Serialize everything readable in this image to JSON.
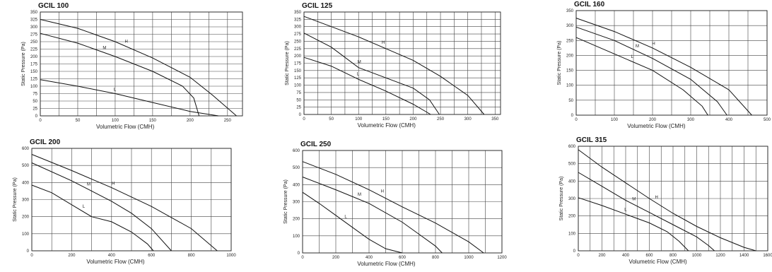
{
  "chart_data": [
    {
      "type": "line",
      "title": "GCIL 100",
      "xlabel": "Volumetric Flow (CMH)",
      "ylabel": "Static Pressure (Pa)",
      "xlim": [
        0,
        270
      ],
      "ylim": [
        0,
        350
      ],
      "xticks": [
        0,
        50,
        100,
        150,
        200,
        250
      ],
      "yticks": [
        0,
        25,
        50,
        75,
        100,
        125,
        150,
        175,
        200,
        225,
        250,
        275,
        300,
        325,
        350
      ],
      "grid": true,
      "series": [
        {
          "name": "H",
          "points": [
            [
              0,
              325
            ],
            [
              50,
              295
            ],
            [
              100,
              250
            ],
            [
              150,
              195
            ],
            [
              200,
              130
            ],
            [
              230,
              70
            ],
            [
              262,
              0
            ]
          ]
        },
        {
          "name": "M",
          "points": [
            [
              0,
              278
            ],
            [
              50,
              245
            ],
            [
              100,
              200
            ],
            [
              150,
              150
            ],
            [
              190,
              100
            ],
            [
              205,
              60
            ],
            [
              212,
              0
            ]
          ]
        },
        {
          "name": "L",
          "points": [
            [
              0,
              122
            ],
            [
              50,
              100
            ],
            [
              100,
              75
            ],
            [
              150,
              45
            ],
            [
              200,
              15
            ],
            [
              238,
              0
            ]
          ]
        }
      ]
    },
    {
      "type": "line",
      "title": "GCIL 125",
      "xlabel": "Volumetric Flow (CMH)",
      "ylabel": "Static Pressure (Pa)",
      "xlim": [
        0,
        360
      ],
      "ylim": [
        0,
        350
      ],
      "xticks": [
        0,
        50,
        100,
        150,
        200,
        250,
        300,
        350
      ],
      "yticks": [
        0,
        25,
        50,
        75,
        100,
        125,
        150,
        175,
        200,
        225,
        250,
        275,
        300,
        325,
        350
      ],
      "grid": true,
      "series": [
        {
          "name": "H",
          "points": [
            [
              0,
              335
            ],
            [
              50,
              300
            ],
            [
              100,
              265
            ],
            [
              150,
              225
            ],
            [
              200,
              185
            ],
            [
              250,
              130
            ],
            [
              300,
              65
            ],
            [
              330,
              0
            ]
          ]
        },
        {
          "name": "M",
          "points": [
            [
              0,
              278
            ],
            [
              50,
              230
            ],
            [
              100,
              160
            ],
            [
              150,
              125
            ],
            [
              200,
              90
            ],
            [
              230,
              50
            ],
            [
              248,
              0
            ]
          ]
        },
        {
          "name": "L",
          "points": [
            [
              0,
              195
            ],
            [
              50,
              165
            ],
            [
              100,
              120
            ],
            [
              150,
              80
            ],
            [
              200,
              35
            ],
            [
              232,
              0
            ]
          ]
        }
      ]
    },
    {
      "type": "line",
      "title": "GCIL 160",
      "xlabel": "Volumetric Flow (CMH)",
      "ylabel": "Static Pressure (Pa)",
      "xlim": [
        0,
        500
      ],
      "ylim": [
        0,
        350
      ],
      "xticks": [
        0,
        100,
        200,
        300,
        400,
        500
      ],
      "yticks": [
        0,
        50,
        100,
        150,
        200,
        250,
        300,
        350
      ],
      "grid": true,
      "series": [
        {
          "name": "H",
          "points": [
            [
              0,
              325
            ],
            [
              100,
              280
            ],
            [
              200,
              225
            ],
            [
              300,
              160
            ],
            [
              400,
              85
            ],
            [
              460,
              0
            ]
          ]
        },
        {
          "name": "M",
          "points": [
            [
              0,
              295
            ],
            [
              100,
              250
            ],
            [
              200,
              190
            ],
            [
              300,
              120
            ],
            [
              370,
              45
            ],
            [
              395,
              0
            ]
          ]
        },
        {
          "name": "L",
          "points": [
            [
              0,
              260
            ],
            [
              100,
              205
            ],
            [
              200,
              150
            ],
            [
              280,
              85
            ],
            [
              330,
              30
            ],
            [
              345,
              0
            ]
          ]
        }
      ]
    },
    {
      "type": "line",
      "title": "GCIL 200",
      "xlabel": "Volumetric Flow (CMH)",
      "ylabel": "Static Pressure (Pa)",
      "xlim": [
        0,
        1000
      ],
      "ylim": [
        0,
        600
      ],
      "xticks": [
        0,
        200,
        400,
        600,
        800,
        1000
      ],
      "yticks": [
        0,
        100,
        200,
        300,
        400,
        500,
        600
      ],
      "grid": true,
      "series": [
        {
          "name": "H",
          "points": [
            [
              0,
              565
            ],
            [
              200,
              470
            ],
            [
              400,
              370
            ],
            [
              600,
              260
            ],
            [
              800,
              130
            ],
            [
              930,
              0
            ]
          ]
        },
        {
          "name": "M",
          "points": [
            [
              0,
              515
            ],
            [
              200,
              410
            ],
            [
              400,
              290
            ],
            [
              500,
              220
            ],
            [
              600,
              130
            ],
            [
              700,
              0
            ]
          ]
        },
        {
          "name": "L",
          "points": [
            [
              0,
              385
            ],
            [
              100,
              340
            ],
            [
              200,
              270
            ],
            [
              300,
              200
            ],
            [
              400,
              170
            ],
            [
              500,
              110
            ],
            [
              580,
              40
            ],
            [
              610,
              0
            ]
          ]
        }
      ]
    },
    {
      "type": "line",
      "title": "GCIL 250",
      "xlabel": "Volumetric Flow (CMH)",
      "ylabel": "Static Pressure (Pa)",
      "xlim": [
        0,
        1200
      ],
      "ylim": [
        0,
        600
      ],
      "xticks": [
        0,
        200,
        400,
        600,
        800,
        1000,
        1200
      ],
      "yticks": [
        0,
        100,
        200,
        300,
        400,
        500,
        600
      ],
      "grid": true,
      "series": [
        {
          "name": "H",
          "points": [
            [
              0,
              535
            ],
            [
              200,
              460
            ],
            [
              400,
              370
            ],
            [
              600,
              270
            ],
            [
              800,
              175
            ],
            [
              1000,
              65
            ],
            [
              1090,
              0
            ]
          ]
        },
        {
          "name": "M",
          "points": [
            [
              0,
              445
            ],
            [
              200,
              370
            ],
            [
              400,
              290
            ],
            [
              600,
              180
            ],
            [
              700,
              110
            ],
            [
              800,
              40
            ],
            [
              840,
              0
            ]
          ]
        },
        {
          "name": "L",
          "points": [
            [
              0,
              355
            ],
            [
              100,
              290
            ],
            [
              200,
              220
            ],
            [
              300,
              150
            ],
            [
              400,
              80
            ],
            [
              500,
              25
            ],
            [
              600,
              0
            ]
          ]
        }
      ]
    },
    {
      "type": "line",
      "title": "GCIL 315",
      "xlabel": "Volumetric Flow (CMH)",
      "ylabel": "Static Pressure (Pa)",
      "xlim": [
        0,
        1600
      ],
      "ylim": [
        0,
        600
      ],
      "xticks": [
        0,
        200,
        400,
        600,
        800,
        1000,
        1200,
        1400,
        1600
      ],
      "yticks": [
        0,
        100,
        200,
        300,
        400,
        500,
        600
      ],
      "grid": true,
      "series": [
        {
          "name": "H",
          "points": [
            [
              0,
              580
            ],
            [
              200,
              480
            ],
            [
              400,
              390
            ],
            [
              600,
              300
            ],
            [
              800,
              215
            ],
            [
              1000,
              140
            ],
            [
              1200,
              75
            ],
            [
              1400,
              20
            ],
            [
              1500,
              0
            ]
          ]
        },
        {
          "name": "M",
          "points": [
            [
              0,
              450
            ],
            [
              200,
              370
            ],
            [
              400,
              290
            ],
            [
              600,
              220
            ],
            [
              800,
              150
            ],
            [
              1000,
              80
            ],
            [
              1100,
              30
            ],
            [
              1150,
              0
            ]
          ]
        },
        {
          "name": "L",
          "points": [
            [
              0,
              305
            ],
            [
              200,
              260
            ],
            [
              400,
              210
            ],
            [
              600,
              160
            ],
            [
              750,
              110
            ],
            [
              850,
              55
            ],
            [
              930,
              0
            ]
          ]
        }
      ]
    }
  ]
}
